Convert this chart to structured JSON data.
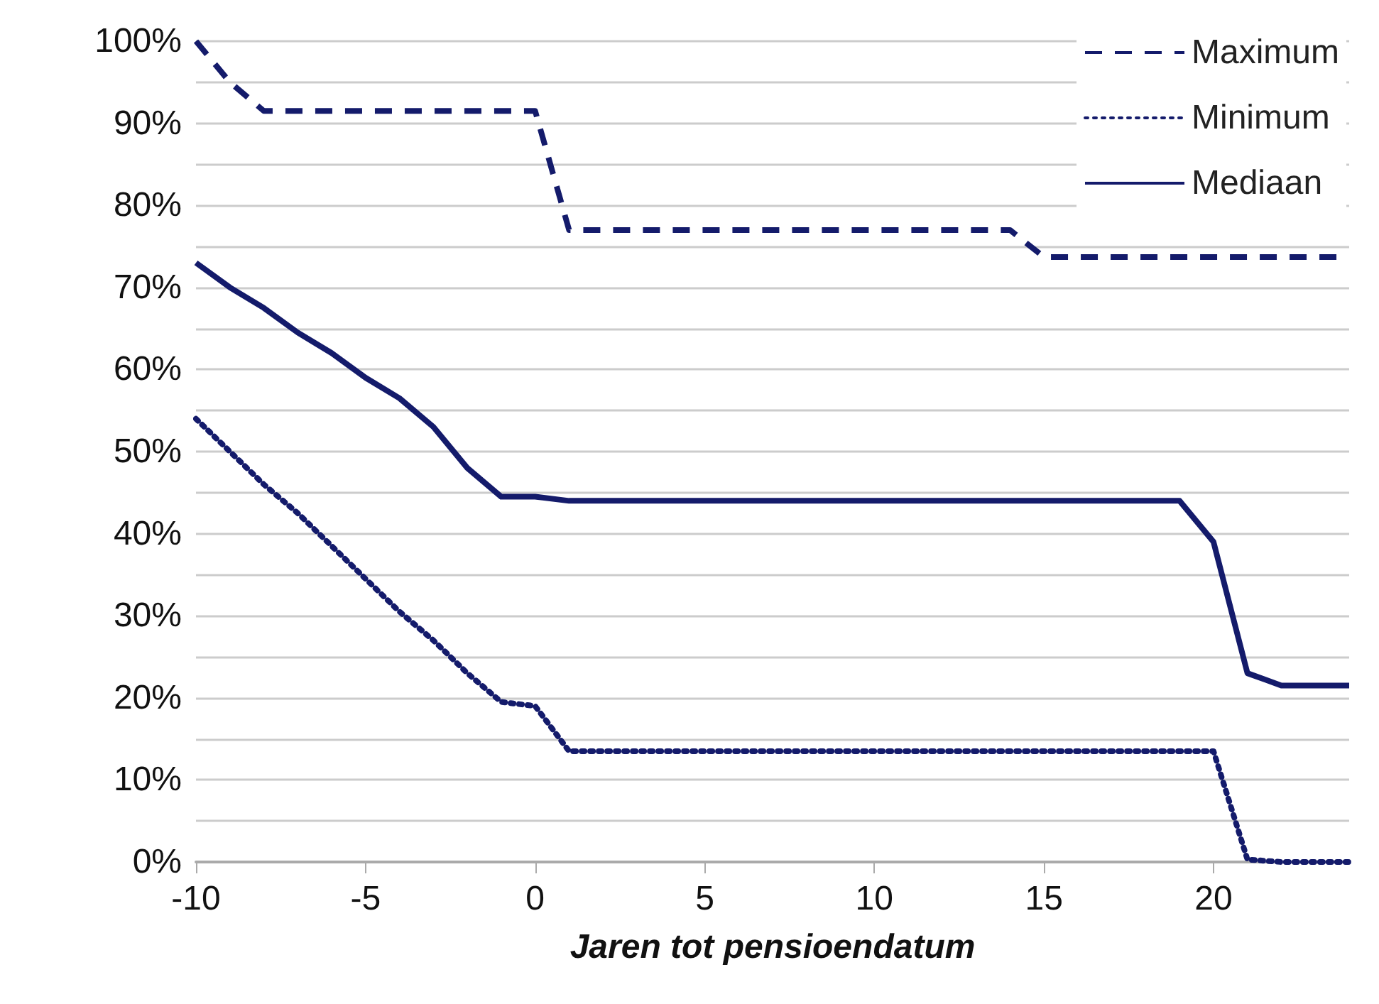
{
  "chart_data": {
    "type": "line",
    "xlabel": "Jaren tot pensioendatum",
    "x": [
      -10,
      -9,
      -8,
      -7,
      -6,
      -5,
      -4,
      -3,
      -2,
      -1,
      0,
      1,
      2,
      3,
      4,
      5,
      6,
      7,
      8,
      9,
      10,
      11,
      12,
      13,
      14,
      15,
      16,
      17,
      18,
      19,
      20,
      21,
      22,
      23,
      24
    ],
    "series": [
      {
        "name": "Maximum",
        "color": "#141b6b",
        "line_style": "dashed",
        "values": [
          100,
          95,
          91.5,
          91.5,
          91.5,
          91.5,
          91.5,
          91.5,
          91.5,
          91.5,
          91.5,
          77,
          77,
          77,
          77,
          77,
          77,
          77,
          77,
          77,
          77,
          77,
          77,
          77,
          77,
          73.7,
          73.7,
          73.7,
          73.7,
          73.7,
          73.7,
          73.7,
          73.7,
          73.7,
          73.7
        ]
      },
      {
        "name": "Minimum",
        "color": "#141b6b",
        "line_style": "dotted",
        "values": [
          54,
          50,
          46,
          42.5,
          38.5,
          34.5,
          30.5,
          27,
          23,
          19.5,
          19,
          13.5,
          13.5,
          13.5,
          13.5,
          13.5,
          13.5,
          13.5,
          13.5,
          13.5,
          13.5,
          13.5,
          13.5,
          13.5,
          13.5,
          13.5,
          13.5,
          13.5,
          13.5,
          13.5,
          13.5,
          0.3,
          0,
          0,
          0
        ]
      },
      {
        "name": "Mediaan",
        "color": "#141b6b",
        "line_style": "solid",
        "values": [
          73,
          70,
          67.5,
          64.5,
          62,
          59,
          56.5,
          53,
          48,
          44.5,
          44.5,
          44,
          44,
          44,
          44,
          44,
          44,
          44,
          44,
          44,
          44,
          44,
          44,
          44,
          44,
          44,
          44,
          44,
          44,
          44,
          39,
          23,
          21.5,
          21.5,
          21.5
        ]
      }
    ],
    "xlim": [
      -10,
      24
    ],
    "xticks": [
      -10,
      -5,
      0,
      5,
      10,
      15,
      20
    ],
    "ylim": [
      0,
      100
    ],
    "yticks": [
      {
        "value": 0,
        "label": "0%"
      },
      {
        "value": 5,
        "label": null
      },
      {
        "value": 10,
        "label": "10%"
      },
      {
        "value": 15,
        "label": null
      },
      {
        "value": 20,
        "label": "20%"
      },
      {
        "value": 25,
        "label": null
      },
      {
        "value": 30,
        "label": "30%"
      },
      {
        "value": 35,
        "label": null
      },
      {
        "value": 40,
        "label": "40%"
      },
      {
        "value": 45,
        "label": null
      },
      {
        "value": 50,
        "label": "50%"
      },
      {
        "value": 55,
        "label": null
      },
      {
        "value": 60,
        "label": "60%"
      },
      {
        "value": 65,
        "label": null
      },
      {
        "value": 70,
        "label": "70%"
      },
      {
        "value": 75,
        "label": null
      },
      {
        "value": 80,
        "label": "80%"
      },
      {
        "value": 85,
        "label": null
      },
      {
        "value": 90,
        "label": "90%"
      },
      {
        "value": 95,
        "label": null
      },
      {
        "value": 100,
        "label": "100%"
      }
    ],
    "grid": "y",
    "legend": "top right",
    "marker": "none"
  }
}
